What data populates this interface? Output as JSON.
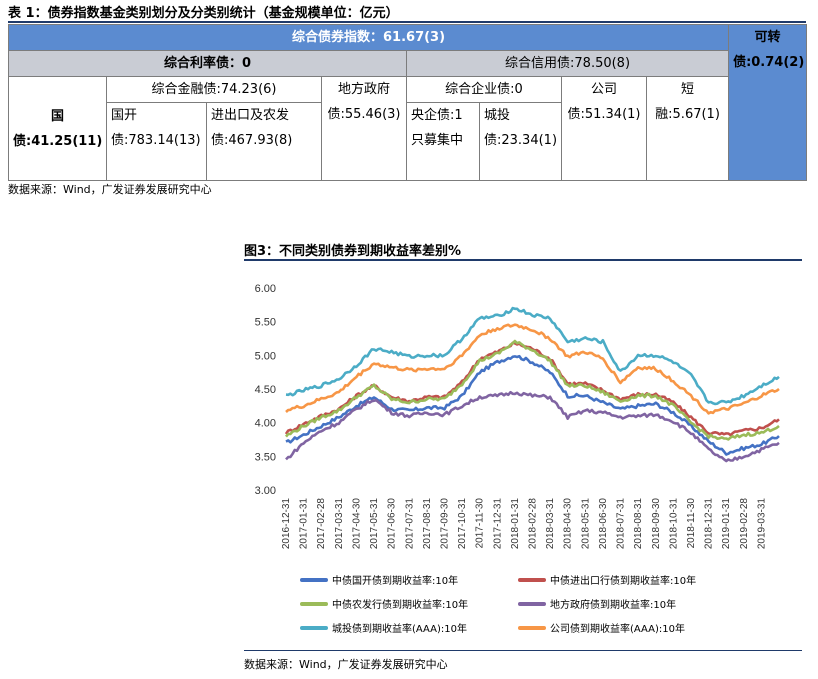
{
  "table": {
    "title": "表 1：债券指数基金类别划分及分类别统计（基金规模单位：亿元）",
    "header_main": "综合债券指数：61.67(3)",
    "header_side": "可转债:0.74(2)",
    "rate_bond": "综合利率债：0",
    "credit_bond": "综合信用债:78.50(8)",
    "treasury": "国债:41.25(11)",
    "fin_bond": "综合金融债:74.23(6)",
    "local_gov": "地方政府债:55.46(3)",
    "corp_bond": "综合企业债:0",
    "company": "公司债:51.34(1)",
    "short_fin": "短融:5.67(1)",
    "cdb": "国开债:783.14(13)",
    "eximb": "进出口及农发债:467.93(8)",
    "central_ent": "央企债:1只募集中",
    "chengtou": "城投债:23.34(1)"
  },
  "source1": "数据来源：Wind，广发证券发展研究中心",
  "figure": {
    "title": "图3：不同类别债券到期收益率差别%",
    "source": "数据来源：Wind，广发证券发展研究中心"
  },
  "chart_data": {
    "type": "line",
    "title": "",
    "ylim": [
      3.0,
      6.0
    ],
    "yticks": [
      "3.00",
      "3.50",
      "4.00",
      "4.50",
      "5.00",
      "5.50",
      "6.00"
    ],
    "x": [
      "2016-12-31",
      "2017-01-31",
      "2017-02-28",
      "2017-03-31",
      "2017-04-30",
      "2017-05-31",
      "2017-06-30",
      "2017-07-31",
      "2017-08-31",
      "2017-09-30",
      "2017-10-31",
      "2017-11-30",
      "2017-12-31",
      "2018-01-31",
      "2018-02-28",
      "2018-03-31",
      "2018-04-30",
      "2018-05-31",
      "2018-06-30",
      "2018-07-31",
      "2018-08-31",
      "2018-09-30",
      "2018-10-31",
      "2018-11-30",
      "2018-12-31",
      "2019-01-31",
      "2019-02-28",
      "2019-03-31",
      "2019-04-15"
    ],
    "xtick_labels": [
      "2016-12-31",
      "2017-01-31",
      "2017-02-28",
      "2017-03-31",
      "2017-04-30",
      "2017-05-31",
      "2017-06-30",
      "2017-07-31",
      "2017-08-31",
      "2017-09-30",
      "2017-10-31",
      "2017-11-30",
      "2017-12-31",
      "2018-01-31",
      "2018-02-28",
      "2018-03-31",
      "2018-04-30",
      "2018-05-31",
      "2018-06-30",
      "2018-07-31",
      "2018-08-31",
      "2018-09-30",
      "2018-10-31",
      "2018-11-30",
      "2018-12-31",
      "2019-01-31",
      "2019-02-28",
      "2019-03-31"
    ],
    "series": [
      {
        "name": "中债国开债到期收益率:10年",
        "color": "#4472c4",
        "values": [
          3.7,
          3.82,
          3.95,
          4.08,
          4.25,
          4.38,
          4.2,
          4.18,
          4.22,
          4.22,
          4.4,
          4.75,
          4.9,
          5.0,
          4.9,
          4.75,
          4.4,
          4.4,
          4.3,
          4.2,
          4.25,
          4.28,
          4.15,
          3.95,
          3.72,
          3.55,
          3.62,
          3.68,
          3.8
        ]
      },
      {
        "name": "中债进出口行债到期收益率:10年",
        "color": "#c0504d",
        "values": [
          3.85,
          3.98,
          4.1,
          4.2,
          4.4,
          4.55,
          4.38,
          4.32,
          4.38,
          4.38,
          4.6,
          4.95,
          5.05,
          5.18,
          5.1,
          4.95,
          4.58,
          4.58,
          4.48,
          4.35,
          4.42,
          4.42,
          4.3,
          4.08,
          3.85,
          3.82,
          3.88,
          3.92,
          4.05
        ]
      },
      {
        "name": "中债农发行债到期收益率:10年",
        "color": "#9bbb59",
        "values": [
          3.8,
          3.95,
          4.08,
          4.18,
          4.38,
          4.55,
          4.35,
          4.3,
          4.35,
          4.35,
          4.58,
          4.92,
          5.02,
          5.2,
          5.08,
          4.92,
          4.55,
          4.55,
          4.45,
          4.32,
          4.4,
          4.4,
          4.25,
          4.0,
          3.8,
          3.75,
          3.82,
          3.85,
          3.95
        ]
      },
      {
        "name": "地方政府债到期收益率:10年",
        "color": "#8064a2",
        "values": [
          3.45,
          3.7,
          3.88,
          4.0,
          4.2,
          4.35,
          4.15,
          4.1,
          4.15,
          4.12,
          4.25,
          4.38,
          4.4,
          4.45,
          4.4,
          4.38,
          4.08,
          4.18,
          4.15,
          4.08,
          4.1,
          4.12,
          4.02,
          3.85,
          3.6,
          3.42,
          3.5,
          3.6,
          3.7
        ]
      },
      {
        "name": "城投债到期收益率(AAA):10年",
        "color": "#4bacc6",
        "values": [
          4.4,
          4.48,
          4.55,
          4.65,
          4.85,
          5.1,
          5.05,
          4.98,
          5.0,
          5.0,
          5.25,
          5.55,
          5.58,
          5.7,
          5.6,
          5.55,
          5.2,
          5.25,
          5.2,
          4.75,
          5.0,
          5.0,
          4.9,
          4.7,
          4.3,
          4.3,
          4.4,
          4.55,
          4.68
        ]
      },
      {
        "name": "公司债到期收益率(AAA):10年",
        "color": "#f79646",
        "values": [
          4.18,
          4.25,
          4.35,
          4.45,
          4.68,
          4.88,
          4.82,
          4.78,
          4.8,
          4.8,
          5.0,
          5.3,
          5.4,
          5.45,
          5.38,
          5.25,
          4.98,
          5.05,
          4.95,
          4.6,
          4.82,
          4.8,
          4.62,
          4.4,
          4.15,
          4.2,
          4.28,
          4.4,
          4.5
        ]
      }
    ]
  }
}
